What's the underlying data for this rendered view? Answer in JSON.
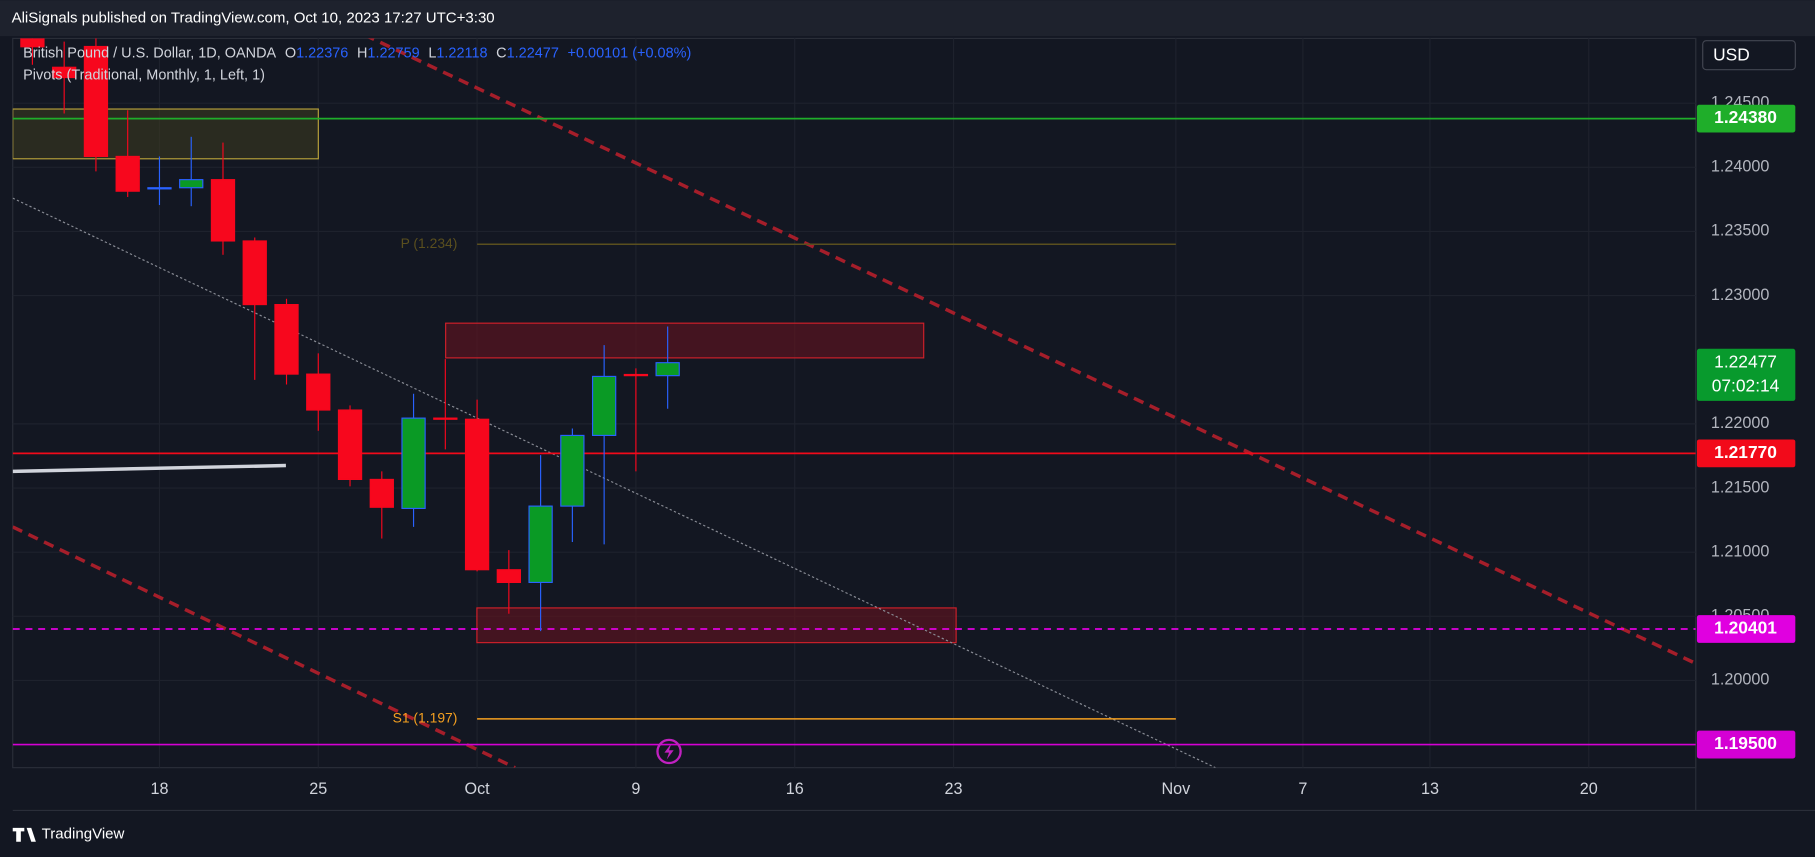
{
  "header": {
    "published": "AliSignals published on TradingView.com, Oct 10, 2023 17:27 UTC+3:30",
    "footer": "TradingView",
    "currency": "USD"
  },
  "chart_data": {
    "type": "candlestick",
    "symbol": "British Pound / U.S. Dollar, 1D, OANDA",
    "ohlc_prefixes": [
      "O",
      "H",
      "L",
      "C"
    ],
    "change": "+0.00101 (+0.08%)",
    "indicator": "Pivots (Traditional, Monthly, 1, Left, 1)",
    "categories": [
      null,
      null,
      null,
      null,
      "18",
      null,
      null,
      null,
      null,
      "25",
      null,
      null,
      null,
      null,
      "Oct",
      null,
      null,
      null,
      null,
      "9",
      null,
      null,
      null,
      null,
      "16",
      null,
      null,
      null,
      null,
      "23",
      null,
      null,
      null,
      null,
      null,
      null,
      "Nov",
      null,
      null,
      null,
      "7",
      null,
      null,
      null,
      "13",
      null,
      null,
      null,
      null,
      "20",
      null,
      null,
      null
    ],
    "open": [
      1.2505,
      1.2478,
      1.24942,
      1.24085,
      1.23832,
      1.23841,
      1.23904,
      1.23426,
      1.2293,
      1.22388,
      1.22108,
      1.21567,
      1.21341,
      1.22045,
      1.22036,
      1.20863,
      1.20764,
      1.21359,
      1.2191,
      1.22385,
      1.22376,
      null,
      null,
      null,
      null,
      null,
      null,
      null,
      null,
      null,
      null,
      null,
      null,
      null,
      null,
      null,
      null,
      null,
      null,
      null,
      null,
      null,
      null,
      null,
      null,
      null,
      null,
      null,
      null,
      null,
      null,
      null,
      null
    ],
    "high": [
      1.2515,
      1.2498,
      1.2505,
      1.24445,
      1.24085,
      1.24238,
      1.24193,
      1.23453,
      1.22975,
      1.2255,
      1.22144,
      1.2163,
      1.22235,
      1.22505,
      1.22189,
      1.21016,
      1.21756,
      1.21964,
      1.22614,
      1.22433,
      1.22759,
      null,
      null,
      null,
      null,
      null,
      null,
      null,
      null,
      null,
      null,
      null,
      null,
      null,
      null,
      null,
      null,
      null,
      null,
      null,
      null,
      null,
      null,
      null,
      null,
      null,
      null,
      null,
      null,
      null,
      null,
      null,
      null
    ],
    "low": [
      1.248,
      1.2442,
      1.23968,
      1.23769,
      1.23706,
      1.23697,
      1.23318,
      1.22343,
      1.22307,
      1.21946,
      1.21513,
      1.21106,
      1.21197,
      1.21801,
      1.2085,
      1.2052,
      1.20384,
      1.21079,
      1.21061,
      1.2163,
      1.22118,
      null,
      null,
      null,
      null,
      null,
      null,
      null,
      null,
      null,
      null,
      null,
      null,
      null,
      null,
      null,
      null,
      null,
      null,
      null,
      null,
      null,
      null,
      null,
      null,
      null,
      null,
      null,
      null,
      null,
      null,
      null,
      null
    ],
    "close": [
      1.2494,
      1.247,
      1.24085,
      1.23814,
      1.23841,
      1.23904,
      1.23426,
      1.2293,
      1.22388,
      1.22108,
      1.21567,
      1.2135,
      1.22045,
      1.22036,
      1.20863,
      1.20764,
      1.21359,
      1.2191,
      1.2237,
      1.22376,
      1.22477,
      null,
      null,
      null,
      null,
      null,
      null,
      null,
      null,
      null,
      null,
      null,
      null,
      null,
      null,
      null,
      null,
      null,
      null,
      null,
      null,
      null,
      null,
      null,
      null,
      null,
      null,
      null,
      null,
      null,
      null,
      null,
      null
    ],
    "up_color": "#0a9a25",
    "down_color": "#f7071d",
    "up_border": "#2962ff",
    "ylim": [
      1.1932,
      1.25005
    ],
    "yticks": [
      {
        "value": 1.245,
        "label": "1.24500"
      },
      {
        "value": 1.24,
        "label": "1.24000"
      },
      {
        "value": 1.235,
        "label": "1.23500"
      },
      {
        "value": 1.23,
        "label": "1.23000"
      },
      {
        "value": 1.22,
        "label": "1.22000"
      },
      {
        "value": 1.215,
        "label": "1.21500"
      },
      {
        "value": 1.21,
        "label": "1.21000"
      },
      {
        "value": 1.205,
        "label": "1.20500"
      },
      {
        "value": 1.2,
        "label": "1.20000"
      }
    ],
    "grid": true,
    "levels": [
      {
        "value": 1.2438,
        "label": "1.24380",
        "color": "#1fae2a",
        "dashed": false
      },
      {
        "value": 1.2177,
        "label": "1.21770",
        "color": "#f20a1a",
        "dashed": false
      },
      {
        "value": 1.20401,
        "label": "1.20401",
        "color": "#e000e0",
        "dashed": true
      },
      {
        "value": 1.195,
        "label": "1.19500",
        "color": "#d400d4",
        "dashed": false
      }
    ],
    "current_price": {
      "value": 1.22477,
      "label": "1.22477",
      "countdown": "07:02:14",
      "color": "#089a2d"
    },
    "pivots": [
      {
        "label": "P (1.234)",
        "value": 1.234,
        "color": "#5a4f1e"
      },
      {
        "label": "S1 (1.197)",
        "value": 1.197,
        "color": "#f5a020"
      }
    ]
  }
}
